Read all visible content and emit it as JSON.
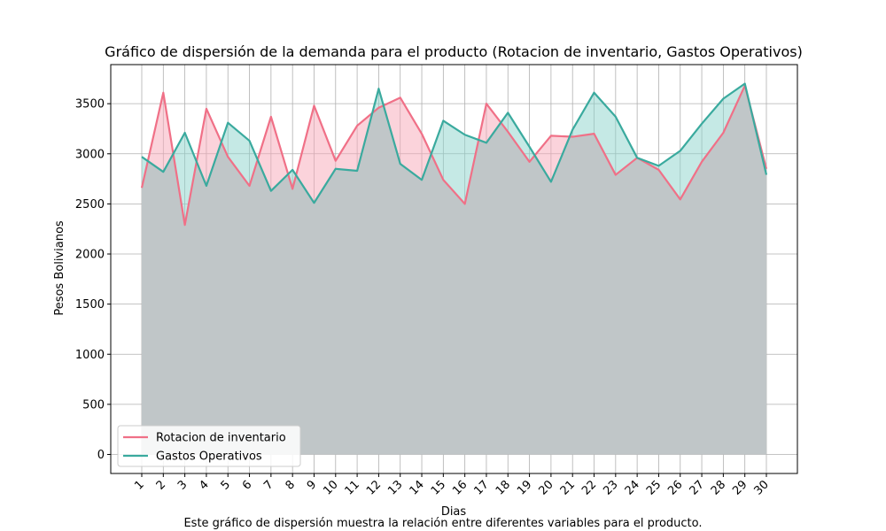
{
  "chart_data": {
    "type": "area",
    "title": "Gráfico de dispersión de la demanda para el producto (Rotacion de inventario, Gastos Operativos)",
    "xlabel": "Dias",
    "ylabel": "Pesos Bolivianos",
    "caption": "Este gráfico de dispersión muestra la relación entre diferentes variables para el producto.",
    "x": [
      1,
      2,
      3,
      4,
      5,
      6,
      7,
      8,
      9,
      10,
      11,
      12,
      13,
      14,
      15,
      16,
      17,
      18,
      19,
      20,
      21,
      22,
      23,
      24,
      25,
      26,
      27,
      28,
      29,
      30
    ],
    "x_tick_labels": [
      "1",
      "2",
      "3",
      "4",
      "5",
      "6",
      "7",
      "8",
      "9",
      "10",
      "11",
      "12",
      "13",
      "14",
      "15",
      "16",
      "17",
      "18",
      "19",
      "20",
      "21",
      "22",
      "23",
      "24",
      "25",
      "26",
      "27",
      "28",
      "29",
      "30"
    ],
    "y_ticks": [
      0,
      500,
      1000,
      1500,
      2000,
      2500,
      3000,
      3500
    ],
    "y_tick_labels": [
      "0",
      "500",
      "1000",
      "1500",
      "2000",
      "2500",
      "3000",
      "3500"
    ],
    "ylim": [
      -190,
      3890
    ],
    "grid": true,
    "legend_position": "lower-left",
    "series": [
      {
        "name": "Rotacion de inventario",
        "color": "#f07087",
        "fill_color": "#f7a8b8",
        "values": [
          2660,
          3610,
          2290,
          3450,
          2970,
          2680,
          3370,
          2650,
          3480,
          2930,
          3280,
          3460,
          3560,
          3200,
          2740,
          2500,
          3500,
          3220,
          2920,
          3180,
          3170,
          3200,
          2790,
          2960,
          2840,
          2545,
          2920,
          3210,
          3680,
          2850
        ]
      },
      {
        "name": "Gastos Operativos",
        "color": "#3aaa9e",
        "fill_color": "#8cd3cb",
        "values": [
          2970,
          2820,
          3210,
          2680,
          3310,
          3130,
          2630,
          2840,
          2510,
          2850,
          2830,
          3650,
          2900,
          2740,
          3330,
          3190,
          3110,
          3410,
          3070,
          2720,
          3240,
          3610,
          3370,
          2960,
          2880,
          3030,
          3300,
          3550,
          3700,
          2790
        ]
      }
    ]
  }
}
